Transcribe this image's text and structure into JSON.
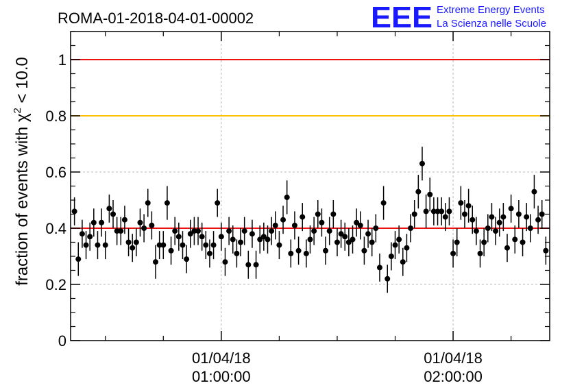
{
  "title": "ROMA-01-2018-04-01-00002",
  "logo": {
    "mark": "EEE",
    "line1": "Extreme Energy Events",
    "line2": "La Scienza nelle Scuole",
    "color": "#1a1aff"
  },
  "chart_data": {
    "type": "scatter",
    "title": "ROMA-01-2018-04-01-00002",
    "ylabel_prefix": "fraction of events with ",
    "ylabel_symbol": "χ",
    "ylabel_sup": "2",
    "ylabel_suffix": " < 10.0",
    "ylim": [
      0,
      1.1
    ],
    "yticks": [
      0,
      0.2,
      0.4,
      0.6,
      0.8,
      1
    ],
    "ytick_labels": [
      "0",
      "0.2",
      "0.4",
      "0.6",
      "0.8",
      "1"
    ],
    "xlim_minutes": [
      21,
      145
    ],
    "xticks_minutes": [
      60,
      120
    ],
    "xtick_labels": [
      [
        "01/04/18",
        "01:00:00"
      ],
      [
        "01/04/18",
        "02:00:00"
      ]
    ],
    "grid": true,
    "reference_lines": [
      {
        "y": 1.0,
        "color": "#ee1111"
      },
      {
        "y": 0.8,
        "color": "#ffc000"
      },
      {
        "y": 0.4,
        "color": "#ee1111"
      }
    ],
    "marker_color": "#000000",
    "series": [
      {
        "x_minutes": [
          22,
          23,
          24,
          25,
          26,
          27,
          28,
          29,
          30,
          31,
          32,
          33,
          34,
          35,
          36,
          37,
          38,
          39,
          40,
          41,
          42,
          43,
          44,
          45,
          46,
          47,
          48,
          49,
          50,
          51,
          52,
          53,
          54,
          55,
          56,
          57,
          58,
          59,
          60,
          61,
          62,
          63,
          64,
          65,
          66,
          67,
          68,
          69,
          70,
          71,
          72,
          73,
          74,
          75,
          76,
          77,
          78,
          79,
          80,
          81,
          82,
          83,
          84,
          85,
          86,
          87,
          88,
          89,
          90,
          91,
          92,
          93,
          94,
          95,
          96,
          97,
          98,
          99,
          100,
          101,
          102,
          103,
          104,
          105,
          106,
          107,
          108,
          109,
          110,
          111,
          112,
          113,
          114,
          115,
          116,
          117,
          118,
          119,
          120,
          121,
          122,
          123,
          124,
          125,
          126,
          127,
          128,
          129,
          130,
          131,
          132,
          133,
          134,
          135,
          136,
          137,
          138,
          139,
          140,
          141,
          142,
          143,
          144
        ],
        "values": [
          0.46,
          0.29,
          0.38,
          0.34,
          0.37,
          0.42,
          0.34,
          0.42,
          0.34,
          0.47,
          0.45,
          0.39,
          0.39,
          0.43,
          0.35,
          0.33,
          0.35,
          0.42,
          0.4,
          0.49,
          0.41,
          0.28,
          0.34,
          0.34,
          0.49,
          0.32,
          0.39,
          0.37,
          0.34,
          0.29,
          0.38,
          0.39,
          0.39,
          0.37,
          0.34,
          0.31,
          0.34,
          0.49,
          0.37,
          0.28,
          0.39,
          0.36,
          0.31,
          0.35,
          0.39,
          0.27,
          0.38,
          0.27,
          0.36,
          0.37,
          0.36,
          0.39,
          0.41,
          0.34,
          0.43,
          0.51,
          0.31,
          0.41,
          0.32,
          0.44,
          0.31,
          0.36,
          0.39,
          0.45,
          0.42,
          0.32,
          0.39,
          0.45,
          0.35,
          0.38,
          0.37,
          0.35,
          0.36,
          0.42,
          0.41,
          0.32,
          0.38,
          0.35,
          0.4,
          0.26,
          0.49,
          0.22,
          0.3,
          0.34,
          0.36,
          0.28,
          0.33,
          0.4,
          0.45,
          0.53,
          0.63,
          0.46,
          0.52,
          0.46,
          0.46,
          0.46,
          0.44,
          0.46,
          0.31,
          0.35,
          0.49,
          0.45,
          0.48,
          0.43,
          0.39,
          0.31,
          0.35,
          0.4,
          0.44,
          0.39,
          0.42,
          0.44,
          0.33,
          0.47,
          0.36,
          0.45,
          0.35,
          0.44,
          0.4,
          0.53,
          0.43,
          0.45,
          0.32
        ],
        "errors": [
          0.05,
          0.06,
          0.05,
          0.05,
          0.05,
          0.05,
          0.05,
          0.05,
          0.05,
          0.05,
          0.05,
          0.05,
          0.05,
          0.05,
          0.05,
          0.05,
          0.05,
          0.05,
          0.05,
          0.05,
          0.05,
          0.06,
          0.05,
          0.05,
          0.06,
          0.05,
          0.05,
          0.05,
          0.05,
          0.05,
          0.05,
          0.05,
          0.05,
          0.05,
          0.05,
          0.05,
          0.05,
          0.05,
          0.05,
          0.05,
          0.05,
          0.05,
          0.05,
          0.05,
          0.05,
          0.05,
          0.05,
          0.05,
          0.05,
          0.05,
          0.05,
          0.05,
          0.05,
          0.05,
          0.05,
          0.06,
          0.05,
          0.05,
          0.05,
          0.05,
          0.05,
          0.05,
          0.05,
          0.05,
          0.05,
          0.05,
          0.05,
          0.05,
          0.05,
          0.05,
          0.05,
          0.05,
          0.05,
          0.05,
          0.05,
          0.05,
          0.05,
          0.05,
          0.05,
          0.05,
          0.06,
          0.05,
          0.05,
          0.05,
          0.05,
          0.05,
          0.05,
          0.05,
          0.05,
          0.06,
          0.06,
          0.06,
          0.06,
          0.05,
          0.05,
          0.05,
          0.05,
          0.05,
          0.05,
          0.05,
          0.06,
          0.05,
          0.06,
          0.05,
          0.05,
          0.05,
          0.05,
          0.05,
          0.05,
          0.05,
          0.05,
          0.05,
          0.05,
          0.05,
          0.05,
          0.05,
          0.05,
          0.05,
          0.05,
          0.06,
          0.05,
          0.05,
          0.05
        ]
      }
    ]
  }
}
